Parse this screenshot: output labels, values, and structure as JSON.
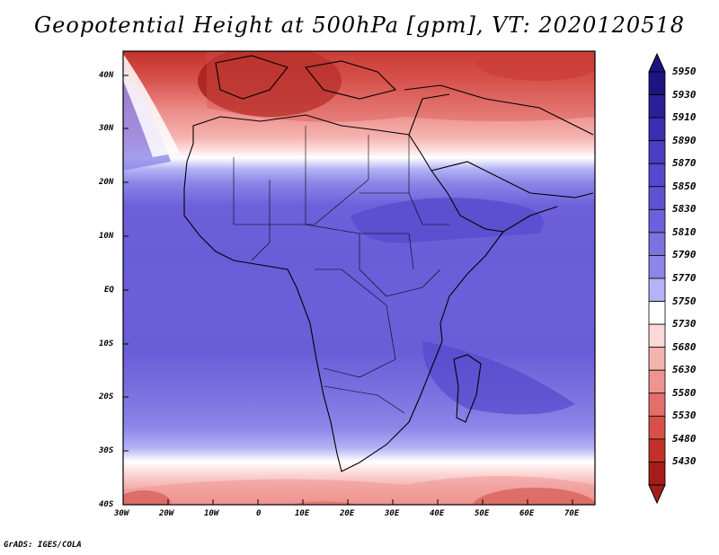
{
  "title": "Geopotential Height at 500hPa [gpm], VT: 2020120518",
  "credit": "GrADS: IGES/COLA",
  "lat_labels": [
    "40N",
    "30N",
    "20N",
    "10N",
    "EQ",
    "10S",
    "20S",
    "30S",
    "40S"
  ],
  "lon_labels": [
    "30W",
    "20W",
    "10W",
    "0",
    "10E",
    "20E",
    "30E",
    "40E",
    "50E",
    "60E",
    "70E"
  ],
  "colorbar": {
    "levels": [
      "5950",
      "5930",
      "5910",
      "5890",
      "5870",
      "5850",
      "5830",
      "5810",
      "5790",
      "5770",
      "5750",
      "5730",
      "5680",
      "5630",
      "5580",
      "5530",
      "5480",
      "5430"
    ],
    "colors": [
      "#1e1480",
      "#2b1e99",
      "#3a2fb0",
      "#4a3fc2",
      "#5648cc",
      "#6152d4",
      "#6e60da",
      "#7d72e0",
      "#8d86e8",
      "#b3b3f5",
      "#ffffff",
      "#fcd9d9",
      "#f5b3b0",
      "#ee938f",
      "#e46f6a",
      "#d6504a",
      "#c2312a",
      "#a51d18"
    ]
  },
  "map": {
    "projection": "lat-lon",
    "lon_range": [
      -30,
      75
    ],
    "lat_range": [
      -40,
      45
    ],
    "field": "geopotential height 500hPa"
  }
}
